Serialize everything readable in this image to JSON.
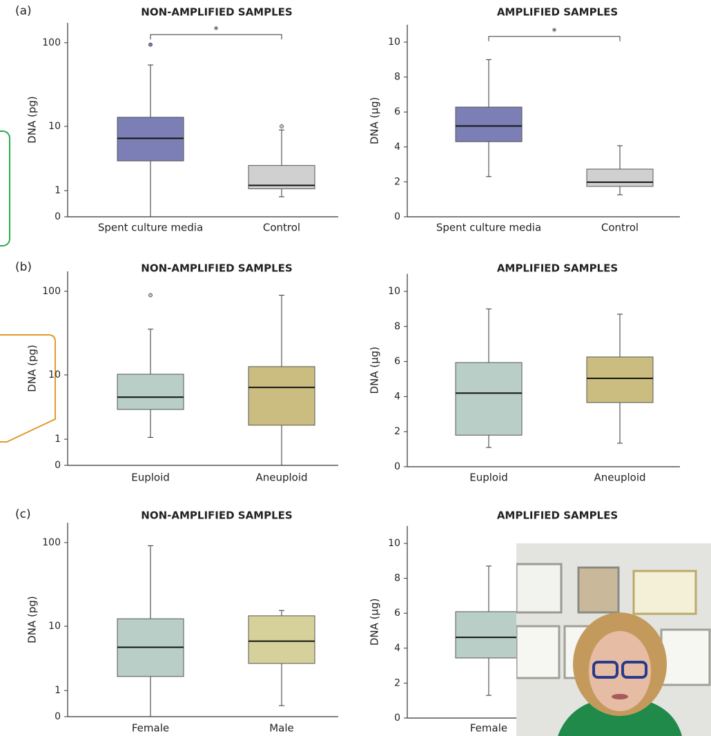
{
  "chart_data": [
    {
      "type": "box",
      "panel_label": "(a)",
      "title": "NON-AMPLIFIED SAMPLES",
      "y_label": "DNA (pg)",
      "yscale": "log1p",
      "ylim": [
        0,
        170
      ],
      "yticks": [
        0,
        1,
        10,
        100
      ],
      "categories": [
        "Spent culture media",
        "Control"
      ],
      "significance": "*",
      "boxes": [
        {
          "min": 0,
          "q1": 3.4,
          "median": 7,
          "q3": 13,
          "max": 55,
          "outliers": [
            95
          ],
          "color": "#7b7fb5"
        },
        {
          "min": 0.7,
          "q1": 1.1,
          "median": 1.3,
          "q3": 2.9,
          "max": 9,
          "outliers": [
            10
          ],
          "color": "#d0d0d0"
        }
      ]
    },
    {
      "type": "box",
      "title": "AMPLIFIED SAMPLES",
      "y_label": "DNA (µg)",
      "yscale": "linear",
      "ylim": [
        0,
        11
      ],
      "yticks": [
        0,
        2,
        4,
        6,
        8,
        10
      ],
      "categories": [
        "Spent culture media",
        "Control"
      ],
      "significance": "*",
      "boxes": [
        {
          "min": 2.3,
          "q1": 4.3,
          "median": 5.2,
          "q3": 6.28,
          "max": 9,
          "outliers": [],
          "color": "#7b7fb5"
        },
        {
          "min": 1.26,
          "q1": 1.74,
          "median": 1.98,
          "q3": 2.73,
          "max": 4.07,
          "outliers": [],
          "color": "#d0d0d0"
        }
      ]
    },
    {
      "type": "box",
      "panel_label": "(b)",
      "title": "NON-AMPLIFIED SAMPLES",
      "y_label": "DNA (pg)",
      "yscale": "log1p",
      "ylim": [
        0,
        170
      ],
      "yticks": [
        0,
        1,
        10,
        100
      ],
      "categories": [
        "Euploid",
        "Aneuploid"
      ],
      "boxes": [
        {
          "min": 1.1,
          "q1": 3.4,
          "median": 5.1,
          "q3": 10.2,
          "max": 36,
          "outliers": [
            90
          ],
          "color": "#b8cec6"
        },
        {
          "min": 0,
          "q1": 1.9,
          "median": 6.9,
          "q3": 12.7,
          "max": 90,
          "outliers": [],
          "color": "#cbbd80"
        }
      ]
    },
    {
      "type": "box",
      "title": "AMPLIFIED SAMPLES",
      "y_label": "DNA (µg)",
      "yscale": "linear",
      "ylim": [
        0,
        11
      ],
      "yticks": [
        0,
        2,
        4,
        6,
        8,
        10
      ],
      "categories": [
        "Euploid",
        "Aneuploid"
      ],
      "boxes": [
        {
          "min": 1.1,
          "q1": 1.8,
          "median": 4.2,
          "q3": 5.94,
          "max": 9,
          "outliers": [],
          "color": "#b8cec6"
        },
        {
          "min": 1.34,
          "q1": 3.66,
          "median": 5.04,
          "q3": 6.26,
          "max": 8.7,
          "outliers": [],
          "color": "#cbbd80"
        }
      ]
    },
    {
      "type": "box",
      "panel_label": "(c)",
      "title": "NON-AMPLIFIED SAMPLES",
      "y_label": "DNA (pg)",
      "yscale": "log1p",
      "ylim": [
        0,
        170
      ],
      "yticks": [
        0,
        1,
        10,
        100
      ],
      "categories": [
        "Female",
        "Male"
      ],
      "boxes": [
        {
          "min": 0,
          "q1": 1.9,
          "median": 5.3,
          "q3": 12.4,
          "max": 92,
          "outliers": [],
          "color": "#b8cec6"
        },
        {
          "min": 0.34,
          "q1": 3.1,
          "median": 6.4,
          "q3": 13.5,
          "max": 15.7,
          "outliers": [],
          "color": "#d6d19a"
        }
      ]
    },
    {
      "type": "box",
      "title": "AMPLIFIED SAMPLES",
      "y_label": "DNA (µg)",
      "yscale": "linear",
      "ylim": [
        0,
        11
      ],
      "yticks": [
        0,
        2,
        4,
        6,
        8,
        10
      ],
      "categories": [
        "Female",
        null
      ],
      "boxes": [
        {
          "min": 1.3,
          "q1": 3.44,
          "median": 4.62,
          "q3": 6.09,
          "max": 8.7,
          "outliers": [],
          "color": "#b8cec6"
        },
        null
      ]
    }
  ]
}
